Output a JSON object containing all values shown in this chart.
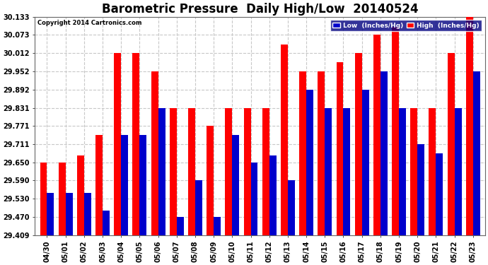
{
  "title": "Barometric Pressure  Daily High/Low  20140524",
  "copyright": "Copyright 2014 Cartronics.com",
  "categories": [
    "04/30",
    "05/01",
    "05/02",
    "05/03",
    "05/04",
    "05/05",
    "05/06",
    "05/07",
    "05/08",
    "05/09",
    "05/10",
    "05/11",
    "05/12",
    "05/13",
    "05/14",
    "05/15",
    "05/16",
    "05/17",
    "05/18",
    "05/19",
    "05/20",
    "05/21",
    "05/22",
    "05/23"
  ],
  "low_values": [
    29.548,
    29.548,
    29.548,
    29.49,
    29.742,
    29.742,
    29.831,
    29.47,
    29.59,
    29.47,
    29.742,
    29.65,
    29.672,
    29.59,
    29.892,
    29.831,
    29.831,
    29.892,
    29.952,
    29.831,
    29.711,
    29.68,
    29.831,
    29.952
  ],
  "high_values": [
    29.65,
    29.65,
    29.672,
    29.742,
    30.012,
    30.012,
    29.952,
    29.831,
    29.831,
    29.771,
    29.831,
    29.831,
    29.831,
    30.04,
    29.952,
    29.952,
    29.982,
    30.012,
    30.073,
    30.1,
    29.831,
    29.831,
    30.012,
    30.133
  ],
  "low_color": "#0000cc",
  "high_color": "#ff0000",
  "bg_color": "#ffffff",
  "grid_color": "#c8c8c8",
  "ylim_min": 29.409,
  "ylim_max": 30.133,
  "yticks": [
    29.409,
    29.47,
    29.53,
    29.59,
    29.65,
    29.711,
    29.771,
    29.831,
    29.892,
    29.952,
    30.012,
    30.073,
    30.133
  ],
  "title_fontsize": 12,
  "tick_fontsize": 7,
  "legend_bg": "#000080",
  "legend_text_color": "#ffffff"
}
